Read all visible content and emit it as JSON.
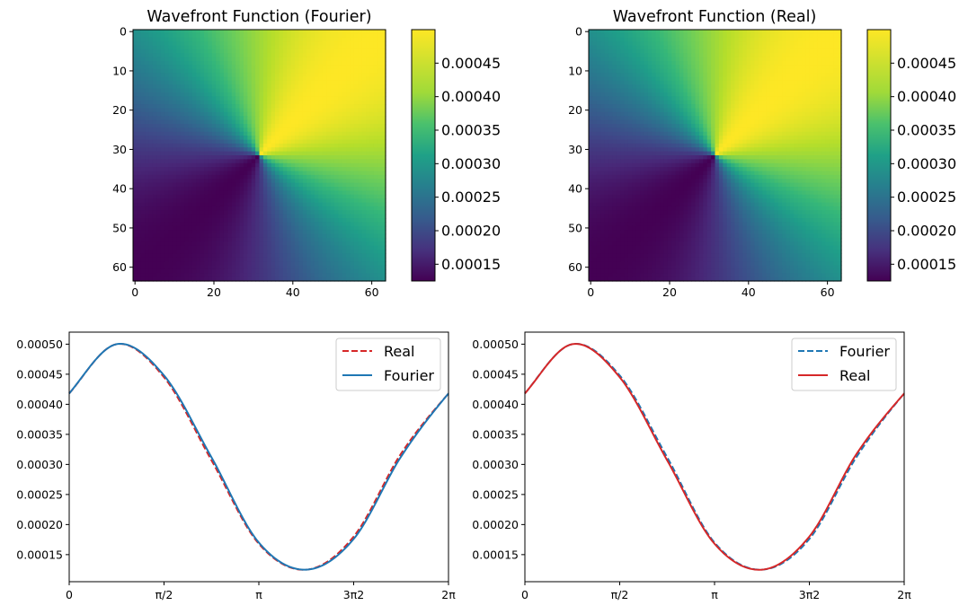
{
  "chart_data": [
    {
      "type": "heatmap",
      "title": "Wavefront Function (Fourier)",
      "grid": false,
      "size": [
        64,
        64
      ],
      "center": [
        31.5,
        31.5
      ],
      "field": {
        "kind": "angular",
        "mean": 0.0003125,
        "amplitude": 0.0001875,
        "max_at_angle_deg": 45,
        "orientation": "y-down"
      },
      "x_ticks": [
        "0",
        "20",
        "40",
        "60"
      ],
      "y_ticks": [
        "0",
        "10",
        "20",
        "30",
        "40",
        "50",
        "60"
      ],
      "colormap": "viridis",
      "colorbar": {
        "ticks": [
          "0.00015",
          "0.00020",
          "0.00025",
          "0.00030",
          "0.00035",
          "0.00040",
          "0.00045"
        ],
        "vmin": 0.000125,
        "vmax": 0.0005
      }
    },
    {
      "type": "heatmap",
      "title": "Wavefront Function (Real)",
      "grid": false,
      "size": [
        64,
        64
      ],
      "center": [
        31.5,
        31.5
      ],
      "field": {
        "kind": "angular",
        "mean": 0.0003125,
        "amplitude": 0.0001875,
        "max_at_angle_deg": 45,
        "orientation": "y-down"
      },
      "x_ticks": [
        "0",
        "20",
        "40",
        "60"
      ],
      "y_ticks": [
        "0",
        "10",
        "20",
        "30",
        "40",
        "50",
        "60"
      ],
      "colormap": "viridis",
      "colorbar": {
        "ticks": [
          "0.00015",
          "0.00020",
          "0.00025",
          "0.00030",
          "0.00035",
          "0.00040",
          "0.00045"
        ],
        "vmin": 0.000125,
        "vmax": 0.0005
      }
    },
    {
      "type": "line",
      "xlim": [
        0,
        6.2832
      ],
      "ylim": [
        0.000105,
        0.00052
      ],
      "x_ticks": [
        "0",
        "π/2",
        "π",
        "3π2",
        "2π"
      ],
      "y_ticks": [
        "0.00015",
        "0.00020",
        "0.00025",
        "0.00030",
        "0.00035",
        "0.00040",
        "0.00045",
        "0.00050"
      ],
      "legend": "top-right",
      "grid": false,
      "series": [
        {
          "name": "Real",
          "style": "dashed",
          "color": "#d62728",
          "x": [
            0,
            0.785,
            1.571,
            2.356,
            3.142,
            3.927,
            4.712,
            5.498,
            6.283
          ],
          "values": [
            0.000418,
            0.0005,
            0.000445,
            0.000307,
            0.000168,
            0.000125,
            0.00018,
            0.000318,
            0.000418
          ]
        },
        {
          "name": "Fourier",
          "style": "solid",
          "color": "#1f77b4",
          "x": [
            0,
            0.785,
            1.571,
            2.356,
            3.142,
            3.927,
            4.712,
            5.498,
            6.283
          ],
          "values": [
            0.000418,
            0.0005,
            0.000448,
            0.000312,
            0.00017,
            0.000125,
            0.000176,
            0.000313,
            0.000418
          ]
        }
      ]
    },
    {
      "type": "line",
      "xlim": [
        0,
        6.2832
      ],
      "ylim": [
        0.000105,
        0.00052
      ],
      "x_ticks": [
        "0",
        "π/2",
        "π",
        "3π2",
        "2π"
      ],
      "y_ticks": [
        "0.00015",
        "0.00020",
        "0.00025",
        "0.00030",
        "0.00035",
        "0.00040",
        "0.00045",
        "0.00050"
      ],
      "legend": "top-right",
      "grid": false,
      "series": [
        {
          "name": "Fourier",
          "style": "dashed",
          "color": "#1f77b4",
          "x": [
            0,
            0.785,
            1.571,
            2.356,
            3.142,
            3.927,
            4.712,
            5.498,
            6.283
          ],
          "values": [
            0.000418,
            0.0005,
            0.000448,
            0.000312,
            0.00017,
            0.000125,
            0.000176,
            0.000313,
            0.000418
          ]
        },
        {
          "name": "Real",
          "style": "solid",
          "color": "#d62728",
          "x": [
            0,
            0.785,
            1.571,
            2.356,
            3.142,
            3.927,
            4.712,
            5.498,
            6.283
          ],
          "values": [
            0.000418,
            0.0005,
            0.000445,
            0.000307,
            0.000168,
            0.000125,
            0.00018,
            0.000318,
            0.000418
          ]
        }
      ]
    }
  ]
}
